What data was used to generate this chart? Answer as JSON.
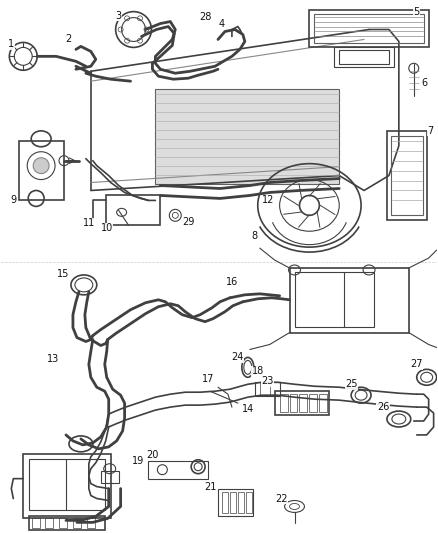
{
  "bg_color": "#ffffff",
  "line_color": "#404040",
  "label_color": "#111111",
  "fig_width": 4.38,
  "fig_height": 5.33,
  "dpi": 100
}
